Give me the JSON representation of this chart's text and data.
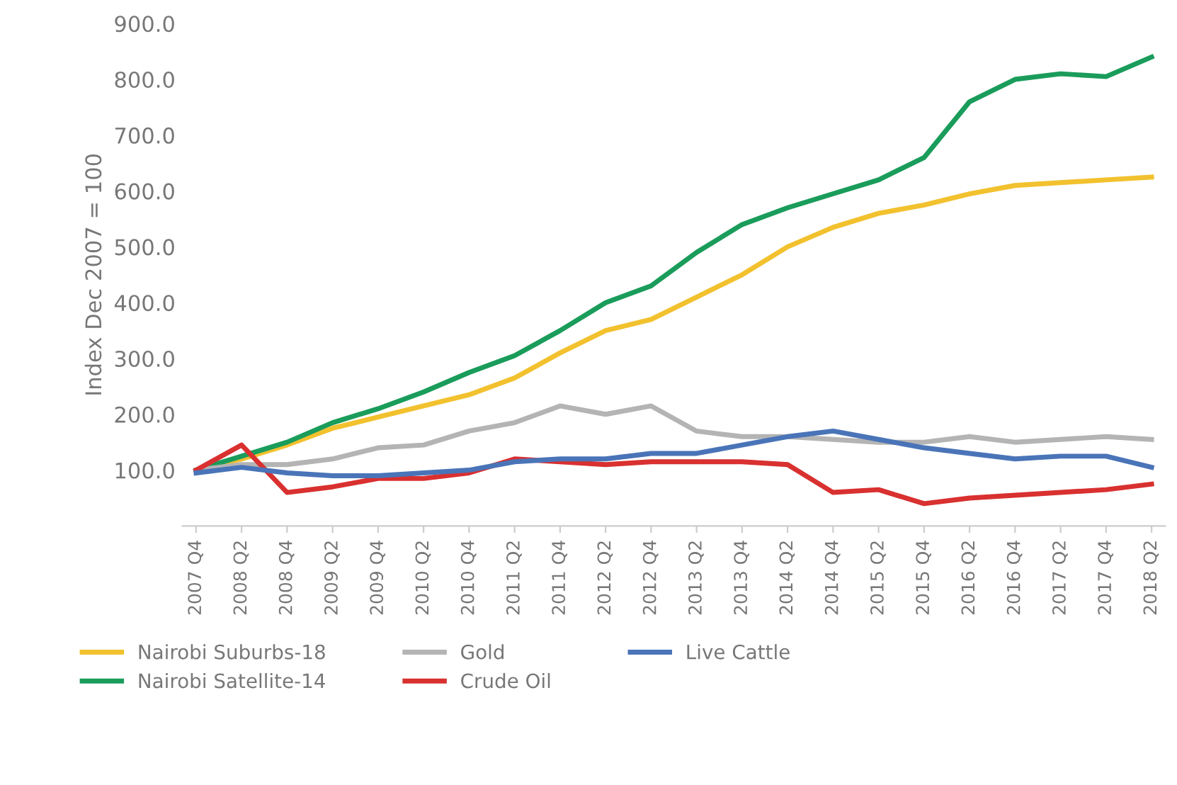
{
  "chart_data": {
    "type": "line",
    "ylabel": "Index Dec 2007 = 100",
    "categories": [
      "2007 Q4",
      "2008 Q2",
      "2008 Q4",
      "2009 Q2",
      "2009 Q4",
      "2010 Q2",
      "2010 Q4",
      "2011 Q2",
      "2011 Q4",
      "2012 Q2",
      "2012 Q4",
      "2013 Q2",
      "2013 Q4",
      "2014 Q2",
      "2014 Q4",
      "2015 Q2",
      "2015 Q4",
      "2016 Q2",
      "2016 Q4",
      "2017 Q2",
      "2017 Q4",
      "2018 Q2"
    ],
    "series": [
      {
        "name": "Nairobi Suburbs-18",
        "color": "#f2c12e",
        "values": [
          100,
          120,
          145,
          175,
          195,
          215,
          235,
          265,
          310,
          350,
          370,
          410,
          450,
          500,
          535,
          560,
          575,
          595,
          610,
          615,
          620,
          625
        ]
      },
      {
        "name": "Nairobi Satellite-14",
        "color": "#1a9c5b",
        "values": [
          100,
          125,
          150,
          185,
          210,
          240,
          275,
          305,
          350,
          400,
          430,
          490,
          540,
          570,
          595,
          620,
          660,
          760,
          800,
          810,
          805,
          840
        ]
      },
      {
        "name": "Gold",
        "color": "#b4b4b4",
        "values": [
          100,
          110,
          110,
          120,
          140,
          145,
          170,
          185,
          215,
          200,
          215,
          170,
          160,
          160,
          155,
          150,
          150,
          160,
          150,
          155,
          160,
          155
        ]
      },
      {
        "name": "Crude Oil",
        "color": "#d93030",
        "values": [
          100,
          145,
          60,
          70,
          85,
          85,
          95,
          120,
          115,
          110,
          115,
          115,
          115,
          110,
          60,
          65,
          40,
          50,
          55,
          60,
          65,
          75
        ]
      },
      {
        "name": "Live Cattle",
        "color": "#4a74b8",
        "values": [
          95,
          105,
          95,
          90,
          90,
          95,
          100,
          115,
          120,
          120,
          130,
          130,
          145,
          160,
          170,
          155,
          140,
          130,
          120,
          125,
          125,
          105
        ]
      }
    ],
    "ylim": [
      0,
      900
    ],
    "yticks": [
      {
        "value": 100,
        "label": "100.0"
      },
      {
        "value": 200,
        "label": "200.0"
      },
      {
        "value": 300,
        "label": "300.0"
      },
      {
        "value": 400,
        "label": "400.0"
      },
      {
        "value": 500,
        "label": "500.0"
      },
      {
        "value": 600,
        "label": "600.0"
      },
      {
        "value": 700,
        "label": "700.0"
      },
      {
        "value": 800,
        "label": "800.0"
      },
      {
        "value": 900,
        "label": "900.0"
      }
    ],
    "grid": false,
    "legend": "bottom",
    "marker": "none",
    "line_style": "solid"
  }
}
